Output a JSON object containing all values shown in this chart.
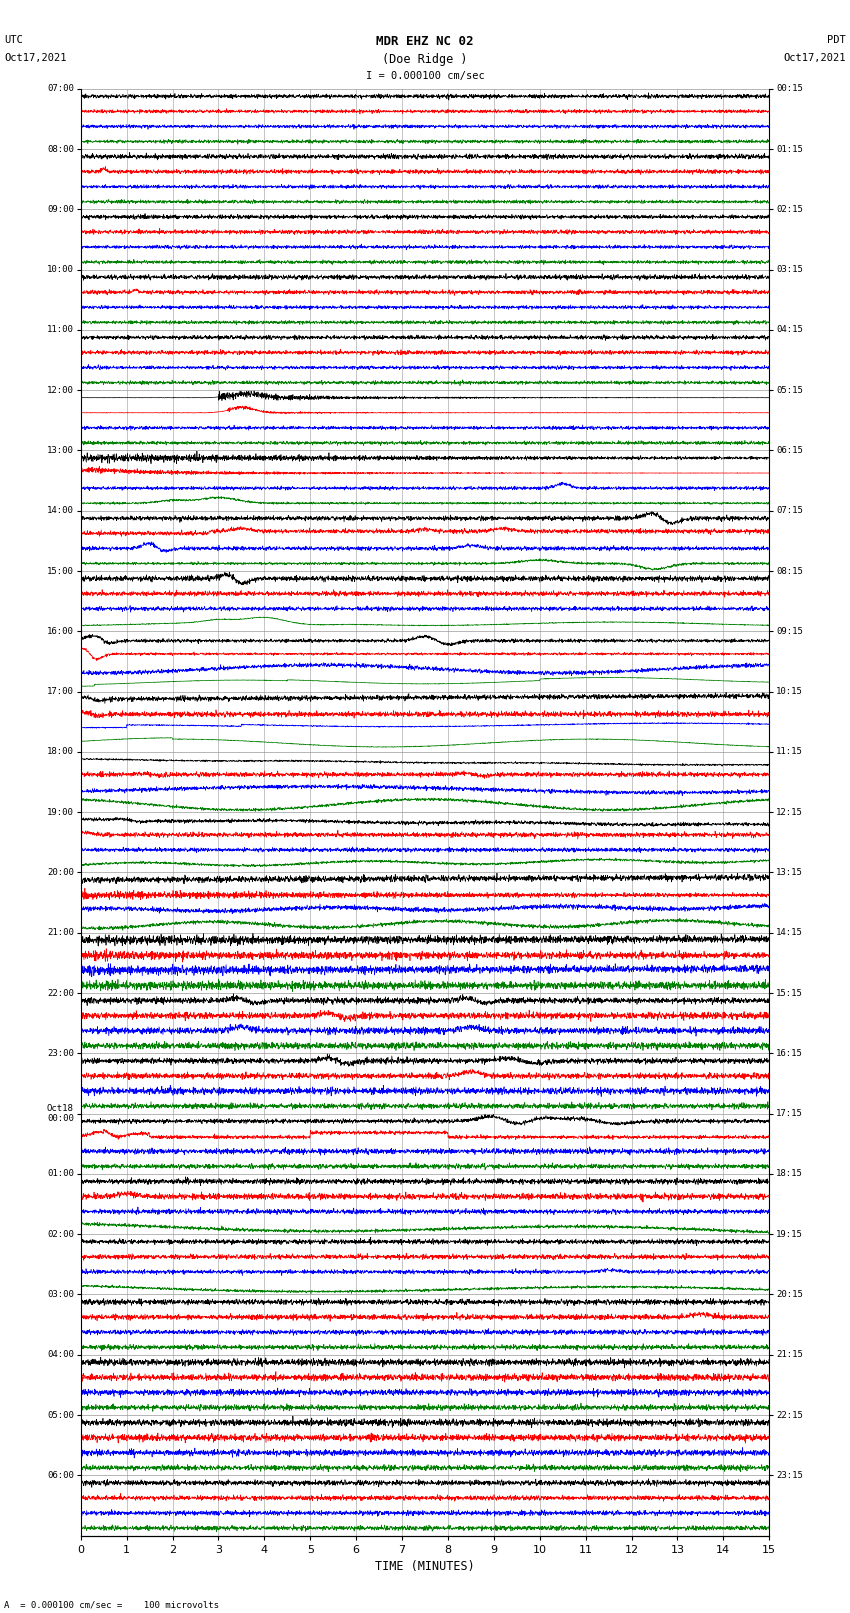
{
  "title_line1": "MDR EHZ NC 02",
  "title_line2": "(Doe Ridge )",
  "scale_text": "I = 0.000100 cm/sec",
  "left_label": "UTC",
  "left_date": "Oct17,2021",
  "right_label": "PDT",
  "right_date": "Oct17,2021",
  "xlabel": "TIME (MINUTES)",
  "bottom_note": "A  = 0.000100 cm/sec =    100 microvolts",
  "xlim": [
    0,
    15
  ],
  "xticks": [
    0,
    1,
    2,
    3,
    4,
    5,
    6,
    7,
    8,
    9,
    10,
    11,
    12,
    13,
    14,
    15
  ],
  "num_rows": 24,
  "utc_times": [
    "07:00",
    "08:00",
    "09:00",
    "10:00",
    "11:00",
    "12:00",
    "13:00",
    "14:00",
    "15:00",
    "16:00",
    "17:00",
    "18:00",
    "19:00",
    "20:00",
    "21:00",
    "22:00",
    "23:00",
    "Oct18\n00:00",
    "01:00",
    "02:00",
    "03:00",
    "04:00",
    "05:00",
    "06:00"
  ],
  "pdt_times": [
    "00:15",
    "01:15",
    "02:15",
    "03:15",
    "04:15",
    "05:15",
    "06:15",
    "07:15",
    "08:15",
    "09:15",
    "10:15",
    "11:15",
    "12:15",
    "13:15",
    "14:15",
    "15:15",
    "16:15",
    "17:15",
    "18:15",
    "19:15",
    "20:15",
    "21:15",
    "22:15",
    "23:15"
  ],
  "fig_width": 8.5,
  "fig_height": 16.13,
  "bg_color": "white",
  "grid_color": "#999999",
  "sub_traces": 4,
  "trace_order": [
    "black",
    "red",
    "blue",
    "green"
  ]
}
